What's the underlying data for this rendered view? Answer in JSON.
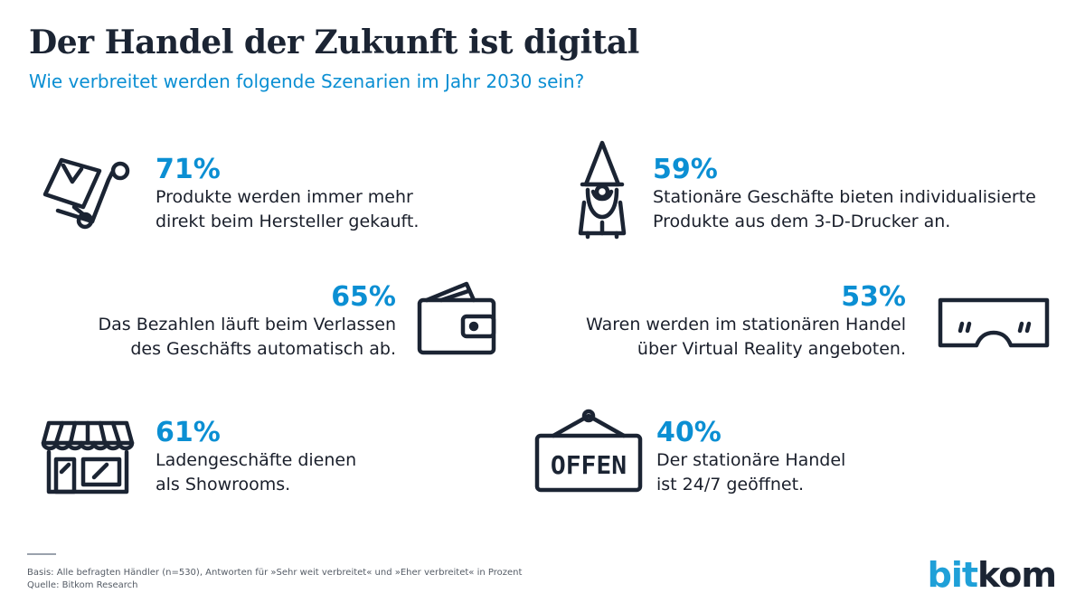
{
  "header": {
    "title": "Der Handel der Zukunft ist digital",
    "subtitle": "Wie verbreitet werden folgende Szenarien im Jahr 2030 sein?"
  },
  "stats": [
    {
      "pct": "71%",
      "desc": "Produkte werden immer mehr\ndirekt beim Hersteller gekauft.",
      "icon": "hand-truck-icon"
    },
    {
      "pct": "59%",
      "desc": "Stationäre Geschäfte bieten individualisierte\nProdukte aus dem 3-D-Drucker an.",
      "icon": "garden-gnome-icon"
    },
    {
      "pct": "65%",
      "desc": "Das Bezahlen läuft beim Verlassen\ndes Geschäfts automatisch ab.",
      "icon": "wallet-icon"
    },
    {
      "pct": "53%",
      "desc": "Waren werden im stationären Handel\nüber Virtual Reality angeboten.",
      "icon": "vr-glasses-icon"
    },
    {
      "pct": "61%",
      "desc": "Ladengeschäfte dienen\nals Showrooms.",
      "icon": "storefront-icon"
    },
    {
      "pct": "40%",
      "desc": "Der stationäre Handel\nist 24/7 geöffnet.",
      "icon": "open-sign-icon"
    }
  ],
  "open_sign_text": "OFFEN",
  "footer": {
    "basis": "Basis: Alle befragten Händler (n=530), Antworten für »Sehr weit verbreitet« und »Eher verbreitet« in Prozent",
    "source": "Quelle: Bitkom Research"
  },
  "logo": {
    "part1": "bit",
    "part2": "kom"
  },
  "colors": {
    "accent": "#0b8fd3",
    "text": "#1a1f2b",
    "icon": "#1b2433"
  },
  "chart_data": {
    "type": "table",
    "title": "Der Handel der Zukunft ist digital",
    "subtitle": "Wie verbreitet werden folgende Szenarien im Jahr 2030 sein?",
    "categories": [
      "Produkte werden immer mehr direkt beim Hersteller gekauft.",
      "Stationäre Geschäfte bieten individualisierte Produkte aus dem 3-D-Drucker an.",
      "Das Bezahlen läuft beim Verlassen des Geschäfts automatisch ab.",
      "Waren werden im stationären Handel über Virtual Reality angeboten.",
      "Ladengeschäfte dienen als Showrooms.",
      "Der stationäre Handel ist 24/7 geöffnet."
    ],
    "values": [
      71,
      59,
      65,
      53,
      61,
      40
    ],
    "unit": "%"
  }
}
